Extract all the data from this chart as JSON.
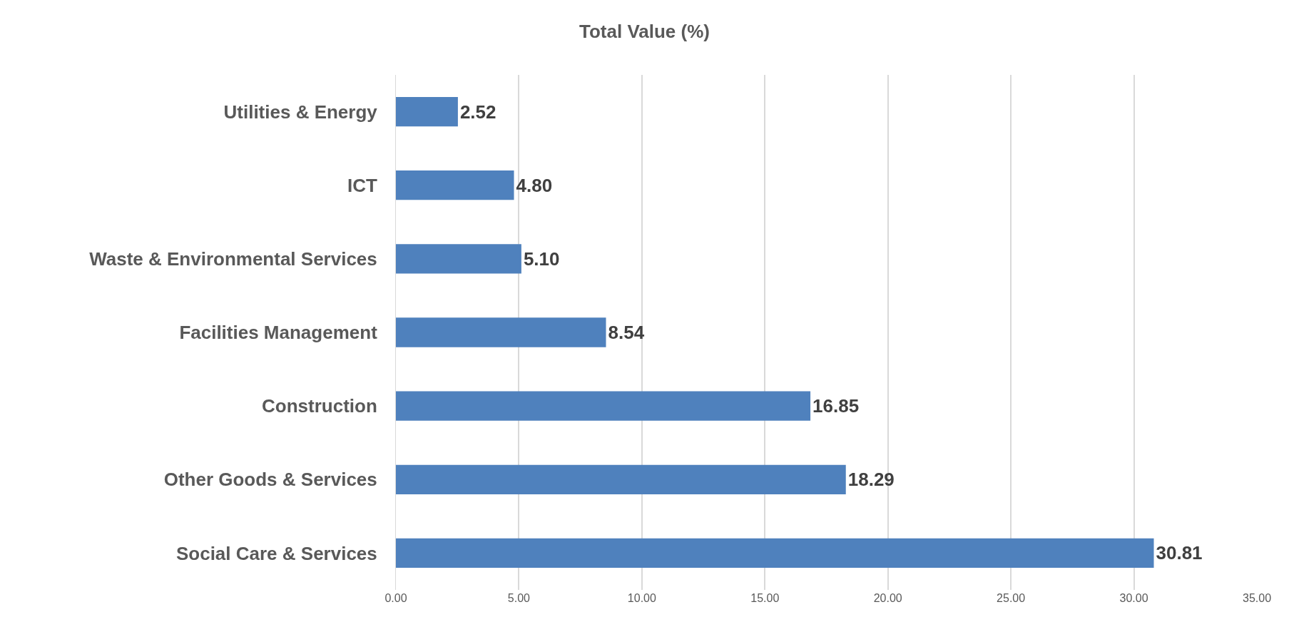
{
  "chart_data": {
    "type": "bar",
    "orientation": "horizontal",
    "title": "Total Value (%)",
    "categories": [
      "Utilities & Energy",
      "ICT",
      "Waste & Environmental Services",
      "Facilities Management",
      "Construction",
      "Other Goods & Services",
      "Social Care & Services"
    ],
    "values": [
      2.52,
      4.8,
      5.1,
      8.54,
      16.85,
      18.29,
      30.81
    ],
    "value_labels": [
      "2.52",
      "4.80",
      "5.10",
      "8.54",
      "16.85",
      "18.29",
      "30.81"
    ],
    "color": "#4f81bd",
    "xlim": [
      0,
      35
    ],
    "xticks": [
      {
        "value": 0,
        "label": "0.00"
      },
      {
        "value": 5,
        "label": "5.00"
      },
      {
        "value": 10,
        "label": "10.00"
      },
      {
        "value": 15,
        "label": "15.00"
      },
      {
        "value": 20,
        "label": "20.00"
      },
      {
        "value": 25,
        "label": "25.00"
      },
      {
        "value": 30,
        "label": "30.00"
      },
      {
        "value": 35,
        "label": "35.00"
      }
    ],
    "grid": "x",
    "legend": false
  }
}
